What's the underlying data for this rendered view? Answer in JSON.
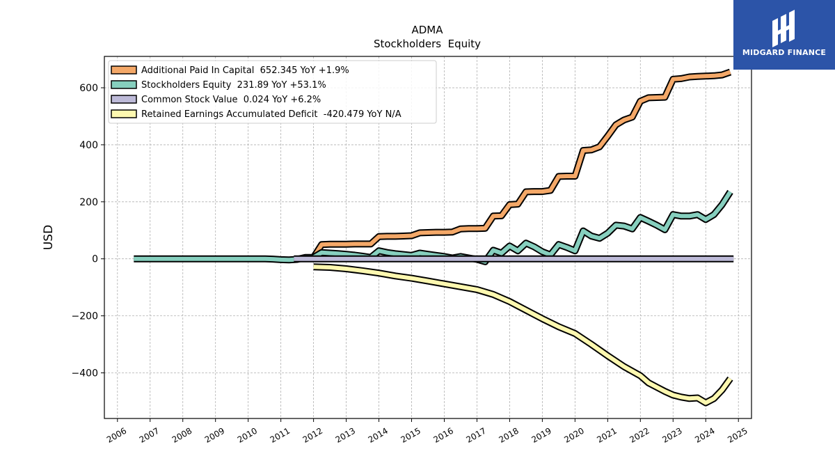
{
  "chart_data": {
    "type": "line",
    "title": "ADMA",
    "subtitle": "Stockholders  Equity",
    "ylabel": "USD",
    "xlabel": "",
    "xlim": [
      2005.6,
      2025.4
    ],
    "ylim": [
      -560,
      710
    ],
    "grid": true,
    "legend_position": "top-left",
    "x_ticks": [
      "2006",
      "2007",
      "2008",
      "2009",
      "2010",
      "2011",
      "2012",
      "2013",
      "2014",
      "2015",
      "2016",
      "2017",
      "2018",
      "2019",
      "2020",
      "2021",
      "2022",
      "2023",
      "2024",
      "2025"
    ],
    "y_ticks": [
      600,
      400,
      200,
      0,
      -200,
      -400
    ],
    "y_tick_labels": [
      "600",
      "400",
      "200",
      "0",
      "−200",
      "−400"
    ],
    "series": [
      {
        "name": "Additional Paid In Capital",
        "legend": "Additional Paid In Capital  652.345 YoY +1.9%",
        "color": "#f4a868",
        "points": [
          [
            2012.0,
            5
          ],
          [
            2012.25,
            50
          ],
          [
            2012.5,
            51
          ],
          [
            2012.75,
            51
          ],
          [
            2013.0,
            51
          ],
          [
            2013.25,
            52
          ],
          [
            2013.5,
            52
          ],
          [
            2013.75,
            52
          ],
          [
            2014.0,
            78
          ],
          [
            2014.25,
            79
          ],
          [
            2014.5,
            79
          ],
          [
            2014.75,
            80
          ],
          [
            2015.0,
            81
          ],
          [
            2015.25,
            91
          ],
          [
            2015.5,
            92
          ],
          [
            2015.75,
            93
          ],
          [
            2016.0,
            93
          ],
          [
            2016.25,
            94
          ],
          [
            2016.5,
            105
          ],
          [
            2016.75,
            106
          ],
          [
            2017.0,
            106
          ],
          [
            2017.25,
            107
          ],
          [
            2017.5,
            150
          ],
          [
            2017.75,
            151
          ],
          [
            2018.0,
            190
          ],
          [
            2018.25,
            192
          ],
          [
            2018.5,
            235
          ],
          [
            2018.75,
            236
          ],
          [
            2019.0,
            236
          ],
          [
            2019.25,
            240
          ],
          [
            2019.5,
            289
          ],
          [
            2019.75,
            290
          ],
          [
            2020.0,
            290
          ],
          [
            2020.25,
            380
          ],
          [
            2020.5,
            382
          ],
          [
            2020.75,
            393
          ],
          [
            2021.0,
            430
          ],
          [
            2021.25,
            470
          ],
          [
            2021.5,
            487
          ],
          [
            2021.75,
            497
          ],
          [
            2022.0,
            553
          ],
          [
            2022.25,
            565
          ],
          [
            2022.5,
            566
          ],
          [
            2022.75,
            567
          ],
          [
            2023.0,
            630
          ],
          [
            2023.25,
            632
          ],
          [
            2023.5,
            638
          ],
          [
            2023.75,
            640
          ],
          [
            2024.0,
            641
          ],
          [
            2024.25,
            642
          ],
          [
            2024.5,
            645
          ],
          [
            2024.75,
            655
          ]
        ]
      },
      {
        "name": "Stockholders Equity",
        "legend": "Stockholders Equity  231.89 YoY +53.1%",
        "color": "#86cfbe",
        "points": [
          [
            2006.5,
            0
          ],
          [
            2007.0,
            0
          ],
          [
            2007.5,
            0
          ],
          [
            2008.0,
            0
          ],
          [
            2008.5,
            0
          ],
          [
            2009.0,
            0
          ],
          [
            2009.5,
            0
          ],
          [
            2010.0,
            0
          ],
          [
            2010.5,
            0
          ],
          [
            2010.75,
            -1
          ],
          [
            2011.0,
            -3
          ],
          [
            2011.25,
            -4
          ],
          [
            2011.5,
            -2
          ],
          [
            2011.75,
            5
          ],
          [
            2012.0,
            5
          ],
          [
            2012.25,
            22
          ],
          [
            2012.5,
            20
          ],
          [
            2012.75,
            18
          ],
          [
            2013.0,
            16
          ],
          [
            2013.25,
            13
          ],
          [
            2013.5,
            9
          ],
          [
            2013.75,
            5
          ],
          [
            2014.0,
            28
          ],
          [
            2014.25,
            22
          ],
          [
            2014.5,
            18
          ],
          [
            2014.75,
            15
          ],
          [
            2015.0,
            12
          ],
          [
            2015.25,
            20
          ],
          [
            2015.5,
            16
          ],
          [
            2015.75,
            12
          ],
          [
            2016.0,
            8
          ],
          [
            2016.25,
            3
          ],
          [
            2016.5,
            8
          ],
          [
            2016.75,
            3
          ],
          [
            2017.0,
            -2
          ],
          [
            2017.25,
            -10
          ],
          [
            2017.5,
            30
          ],
          [
            2017.75,
            20
          ],
          [
            2018.0,
            45
          ],
          [
            2018.25,
            28
          ],
          [
            2018.5,
            55
          ],
          [
            2018.75,
            42
          ],
          [
            2019.0,
            25
          ],
          [
            2019.25,
            14
          ],
          [
            2019.5,
            50
          ],
          [
            2019.75,
            40
          ],
          [
            2020.0,
            28
          ],
          [
            2020.25,
            98
          ],
          [
            2020.5,
            80
          ],
          [
            2020.75,
            72
          ],
          [
            2021.0,
            90
          ],
          [
            2021.25,
            118
          ],
          [
            2021.5,
            115
          ],
          [
            2021.75,
            105
          ],
          [
            2022.0,
            145
          ],
          [
            2022.25,
            132
          ],
          [
            2022.5,
            118
          ],
          [
            2022.75,
            102
          ],
          [
            2023.0,
            155
          ],
          [
            2023.25,
            150
          ],
          [
            2023.5,
            150
          ],
          [
            2023.75,
            155
          ],
          [
            2024.0,
            138
          ],
          [
            2024.25,
            155
          ],
          [
            2024.5,
            190
          ],
          [
            2024.75,
            235
          ]
        ]
      },
      {
        "name": "Common Stock Value",
        "legend": "Common Stock Value  0.024 YoY +6.2%",
        "color": "#bdbad8",
        "points": [
          [
            2011.4,
            0
          ],
          [
            2024.85,
            0
          ]
        ]
      },
      {
        "name": "Retained Earnings Accumulated Deficit",
        "legend": "Retained Earnings Accumulated Deficit  -420.479 YoY N/A",
        "color": "#fdf8b0",
        "points": [
          [
            2012.0,
            -28
          ],
          [
            2012.5,
            -30
          ],
          [
            2013.0,
            -35
          ],
          [
            2013.5,
            -42
          ],
          [
            2014.0,
            -50
          ],
          [
            2014.5,
            -60
          ],
          [
            2015.0,
            -68
          ],
          [
            2015.5,
            -78
          ],
          [
            2016.0,
            -88
          ],
          [
            2016.5,
            -98
          ],
          [
            2017.0,
            -108
          ],
          [
            2017.5,
            -125
          ],
          [
            2018.0,
            -150
          ],
          [
            2018.5,
            -180
          ],
          [
            2019.0,
            -210
          ],
          [
            2019.5,
            -238
          ],
          [
            2020.0,
            -262
          ],
          [
            2020.5,
            -300
          ],
          [
            2021.0,
            -340
          ],
          [
            2021.5,
            -378
          ],
          [
            2022.0,
            -410
          ],
          [
            2022.25,
            -435
          ],
          [
            2022.5,
            -450
          ],
          [
            2022.75,
            -465
          ],
          [
            2023.0,
            -478
          ],
          [
            2023.25,
            -485
          ],
          [
            2023.5,
            -490
          ],
          [
            2023.75,
            -488
          ],
          [
            2024.0,
            -505
          ],
          [
            2024.25,
            -490
          ],
          [
            2024.5,
            -460
          ],
          [
            2024.75,
            -420
          ]
        ]
      }
    ]
  },
  "logo": {
    "text": "MIDGARD FINANCE",
    "background": "#2c54a8"
  }
}
